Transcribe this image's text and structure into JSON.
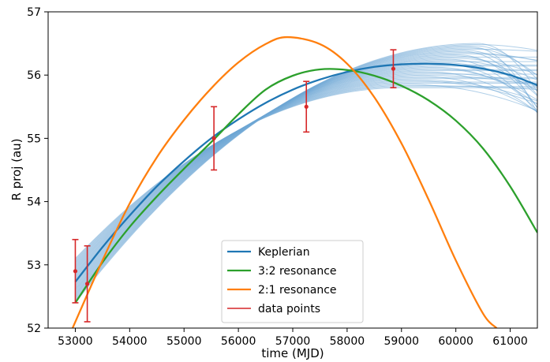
{
  "chart_data": {
    "type": "line",
    "xlabel": "time (MJD)",
    "ylabel": "R proj (au)",
    "xlim": [
      52500,
      61500
    ],
    "ylim": [
      52,
      57
    ],
    "xticks": [
      53000,
      54000,
      55000,
      56000,
      57000,
      58000,
      59000,
      60000,
      61000
    ],
    "yticks": [
      52,
      53,
      54,
      55,
      56,
      57
    ],
    "grid": false,
    "legend_position": "lower center",
    "legend": [
      {
        "label": "Keplerian",
        "color": "#1f77b4"
      },
      {
        "label": "3:2 resonance",
        "color": "#2ca02c"
      },
      {
        "label": "2:1 resonance",
        "color": "#ff7f0e"
      },
      {
        "label": "data points",
        "color": "#d62728"
      }
    ],
    "series": [
      {
        "name": "Keplerian",
        "color": "#1f77b4",
        "x": [
          53000,
          53500,
          54000,
          54500,
          55000,
          55500,
          56000,
          56500,
          57000,
          57500,
          58000,
          58500,
          59000,
          59500,
          60000,
          60500,
          61000,
          61500
        ],
        "y": [
          52.73,
          53.28,
          53.78,
          54.24,
          54.64,
          55.0,
          55.3,
          55.56,
          55.77,
          55.93,
          56.05,
          56.13,
          56.17,
          56.18,
          56.16,
          56.1,
          56.0,
          55.84
        ]
      },
      {
        "name": "3:2 resonance",
        "color": "#2ca02c",
        "x": [
          53000,
          53500,
          54000,
          54500,
          55000,
          55500,
          56000,
          56500,
          57000,
          57500,
          58000,
          58500,
          59000,
          59500,
          60000,
          60500,
          61000,
          61500
        ],
        "y": [
          52.4,
          53.04,
          53.6,
          54.08,
          54.52,
          54.94,
          55.38,
          55.77,
          55.99,
          56.09,
          56.08,
          55.99,
          55.83,
          55.6,
          55.28,
          54.84,
          54.24,
          53.51
        ]
      },
      {
        "name": "2:1 resonance",
        "color": "#ff7f0e",
        "x": [
          52950,
          53500,
          54000,
          54500,
          55000,
          55500,
          56000,
          56500,
          56900,
          57500,
          58000,
          58500,
          59000,
          59500,
          60000,
          60500,
          60750
        ],
        "y": [
          52.0,
          53.07,
          53.97,
          54.7,
          55.29,
          55.79,
          56.2,
          56.49,
          56.6,
          56.49,
          56.18,
          55.65,
          54.92,
          54.03,
          53.07,
          52.23,
          52.0
        ]
      }
    ],
    "data_points": {
      "name": "data points",
      "color": "#d62728",
      "points": [
        {
          "x": 53000,
          "y": 52.9,
          "err": 0.5
        },
        {
          "x": 53220,
          "y": 52.7,
          "err": 0.6
        },
        {
          "x": 55550,
          "y": 55.0,
          "err": 0.5
        },
        {
          "x": 57250,
          "y": 55.5,
          "err": 0.4
        },
        {
          "x": 58850,
          "y": 56.1,
          "err": 0.3
        }
      ]
    },
    "keplerian_samples": {
      "color": "#1f77b4",
      "count": 40,
      "x_start": 53000,
      "x_end": 61500,
      "y_start_spread": [
        52.4,
        53.1
      ],
      "y_end_spread": [
        55.4,
        56.4
      ],
      "peak_spread": [
        55.8,
        56.5
      ]
    }
  }
}
